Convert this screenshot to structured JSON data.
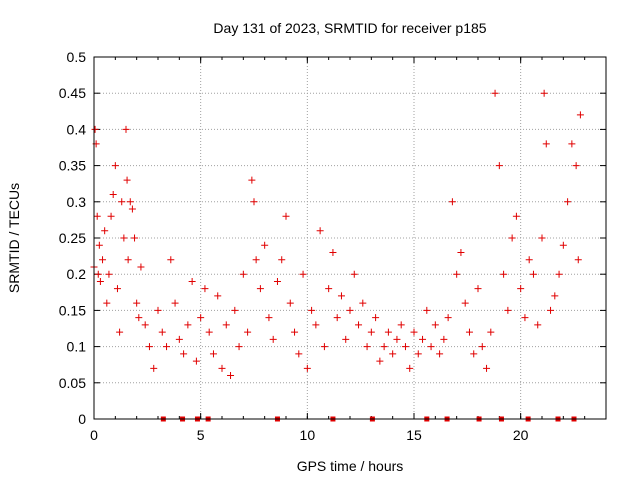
{
  "chart_data": {
    "type": "scatter",
    "title": "Day 131 of 2023, SRMTID for receiver p185",
    "xlabel": "GPS time / hours",
    "ylabel": "SRMTID / TECUs",
    "xlim": [
      0,
      24
    ],
    "ylim": [
      0,
      0.5
    ],
    "x_ticks": [
      0,
      5,
      10,
      15,
      20
    ],
    "x_tick_labels": [
      "0",
      "5",
      "10",
      "15",
      "20"
    ],
    "y_ticks": [
      0,
      0.05,
      0.1,
      0.15,
      0.2,
      0.25,
      0.3,
      0.35,
      0.4,
      0.45,
      0.5
    ],
    "y_tick_labels": [
      "0",
      "0.05",
      "0.1",
      "0.15",
      "0.2",
      "0.25",
      "0.3",
      "0.35",
      "0.4",
      "0.45",
      "0.5"
    ],
    "grid": true,
    "marker": "+",
    "color": "#e00000",
    "series": [
      {
        "name": "SRMTID",
        "x": [
          0.0,
          0.05,
          0.1,
          0.15,
          0.2,
          0.25,
          0.3,
          0.4,
          0.5,
          0.6,
          0.7,
          0.8,
          0.9,
          1.0,
          1.1,
          1.2,
          1.3,
          1.4,
          1.5,
          1.55,
          1.6,
          1.7,
          1.8,
          1.9,
          2.0,
          2.1,
          2.2,
          2.4,
          2.6,
          2.8,
          3.0,
          3.2,
          3.4,
          3.6,
          3.8,
          4.0,
          4.2,
          4.4,
          4.6,
          4.8,
          5.0,
          5.2,
          5.4,
          5.6,
          5.8,
          6.0,
          6.2,
          6.4,
          6.6,
          6.8,
          7.0,
          7.2,
          7.4,
          7.5,
          7.6,
          7.8,
          8.0,
          8.2,
          8.4,
          8.6,
          8.8,
          9.0,
          9.2,
          9.4,
          9.6,
          9.8,
          10.0,
          10.2,
          10.4,
          10.6,
          10.8,
          11.0,
          11.2,
          11.4,
          11.6,
          11.8,
          12.0,
          12.2,
          12.4,
          12.6,
          12.8,
          13.0,
          13.2,
          13.4,
          13.6,
          13.8,
          14.0,
          14.2,
          14.4,
          14.6,
          14.8,
          15.0,
          15.2,
          15.4,
          15.6,
          15.8,
          16.0,
          16.2,
          16.4,
          16.6,
          16.8,
          17.0,
          17.2,
          17.4,
          17.6,
          17.8,
          18.0,
          18.2,
          18.4,
          18.6,
          18.8,
          19.0,
          19.2,
          19.4,
          19.6,
          19.8,
          20.0,
          20.2,
          20.4,
          20.6,
          20.8,
          21.0,
          21.1,
          21.2,
          21.4,
          21.6,
          21.8,
          22.0,
          22.2,
          22.4,
          22.6,
          22.7,
          22.8
        ],
        "y": [
          0.21,
          0.4,
          0.38,
          0.28,
          0.2,
          0.24,
          0.19,
          0.22,
          0.26,
          0.16,
          0.2,
          0.28,
          0.31,
          0.35,
          0.18,
          0.12,
          0.3,
          0.25,
          0.4,
          0.33,
          0.22,
          0.3,
          0.29,
          0.25,
          0.16,
          0.14,
          0.21,
          0.13,
          0.1,
          0.07,
          0.15,
          0.12,
          0.1,
          0.22,
          0.16,
          0.11,
          0.09,
          0.13,
          0.19,
          0.08,
          0.14,
          0.18,
          0.12,
          0.09,
          0.17,
          0.07,
          0.13,
          0.06,
          0.15,
          0.1,
          0.2,
          0.12,
          0.33,
          0.3,
          0.22,
          0.18,
          0.24,
          0.14,
          0.11,
          0.19,
          0.22,
          0.28,
          0.16,
          0.12,
          0.09,
          0.2,
          0.07,
          0.15,
          0.13,
          0.26,
          0.1,
          0.18,
          0.23,
          0.14,
          0.17,
          0.11,
          0.15,
          0.2,
          0.13,
          0.16,
          0.1,
          0.12,
          0.14,
          0.08,
          0.1,
          0.12,
          0.09,
          0.11,
          0.13,
          0.1,
          0.07,
          0.12,
          0.09,
          0.11,
          0.15,
          0.1,
          0.13,
          0.09,
          0.11,
          0.14,
          0.3,
          0.2,
          0.23,
          0.16,
          0.12,
          0.09,
          0.18,
          0.1,
          0.07,
          0.12,
          0.45,
          0.35,
          0.2,
          0.15,
          0.25,
          0.28,
          0.18,
          0.14,
          0.22,
          0.2,
          0.13,
          0.25,
          0.45,
          0.38,
          0.15,
          0.17,
          0.2,
          0.24,
          0.3,
          0.38,
          0.35,
          0.22,
          0.42
        ]
      }
    ],
    "markers_on_axis_x": [
      3.25,
      4.15,
      4.85,
      5.35,
      8.6,
      11.2,
      13.05,
      15.6,
      16.55,
      18.05,
      19.1,
      20.35,
      21.75,
      22.5
    ]
  }
}
